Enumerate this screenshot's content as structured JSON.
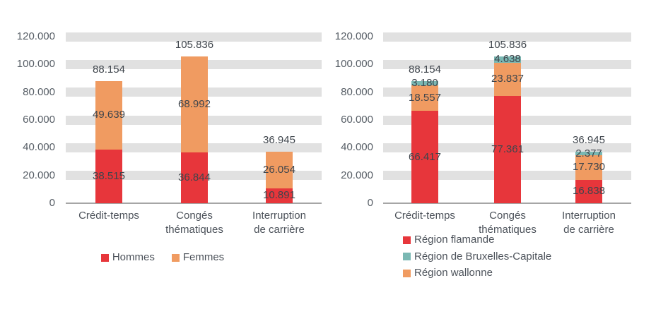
{
  "chart_data": [
    {
      "type": "bar",
      "stacked": true,
      "title": "",
      "xlabel": "",
      "ylabel": "",
      "grid": "horizontal-bands",
      "legend_position": "bottom-center",
      "categories": [
        "Crédit-temps",
        "Congés\nthématiques",
        "Interruption\nde carrière"
      ],
      "ylim": [
        0,
        120000
      ],
      "ytick_values": [
        0,
        20000,
        40000,
        60000,
        80000,
        100000,
        120000
      ],
      "ytick_labels": [
        "0",
        "20.000",
        "40.000",
        "60.000",
        "80.000",
        "100.000",
        "120.000"
      ],
      "series": [
        {
          "name": "Hommes",
          "color": "#e7363b",
          "values": [
            38515,
            36844,
            10891
          ],
          "labels": [
            "38.515",
            "36.844",
            "10.891"
          ]
        },
        {
          "name": "Femmes",
          "color": "#f09b61",
          "values": [
            49639,
            68992,
            26054
          ],
          "labels": [
            "49.639",
            "68.992",
            "26.054"
          ]
        }
      ],
      "stack_order": [
        0,
        1
      ],
      "totals": {
        "values": [
          88154,
          105836,
          36945
        ],
        "labels": [
          "88.154",
          "105.836",
          "36.945"
        ]
      }
    },
    {
      "type": "bar",
      "stacked": true,
      "title": "",
      "xlabel": "",
      "ylabel": "",
      "grid": "horizontal-bands",
      "legend_position": "bottom-left",
      "categories": [
        "Crédit-temps",
        "Congés\nthématiques",
        "Interruption\nde carrière"
      ],
      "ylim": [
        0,
        120000
      ],
      "ytick_values": [
        0,
        20000,
        40000,
        60000,
        80000,
        100000,
        120000
      ],
      "ytick_labels": [
        "0",
        "20.000",
        "40.000",
        "60.000",
        "80.000",
        "100.000",
        "120.000"
      ],
      "series": [
        {
          "name": "Région flamande",
          "color": "#e7363b",
          "values": [
            66417,
            77361,
            16838
          ],
          "labels": [
            "66.417",
            "77.361",
            "16.838"
          ]
        },
        {
          "name": "Région de Bruxelles-Capitale",
          "color": "#7ab8b3",
          "values": [
            3180,
            4638,
            2377
          ],
          "labels": [
            "3.180",
            "4.638",
            "2.377"
          ]
        },
        {
          "name": "Région wallonne",
          "color": "#f09b61",
          "values": [
            18557,
            23837,
            17730
          ],
          "labels": [
            "18.557",
            "23.837",
            "17.730"
          ]
        }
      ],
      "stack_order": [
        0,
        2,
        1
      ],
      "totals": {
        "values": [
          88154,
          105836,
          36945
        ],
        "labels": [
          "88.154",
          "105.836",
          "36.945"
        ]
      }
    }
  ],
  "colors": {
    "red": "#e7363b",
    "orange": "#f09b61",
    "teal": "#7ab8b3",
    "grid_band": "#e1e1e1",
    "axis_line": "#a6a6a6"
  }
}
